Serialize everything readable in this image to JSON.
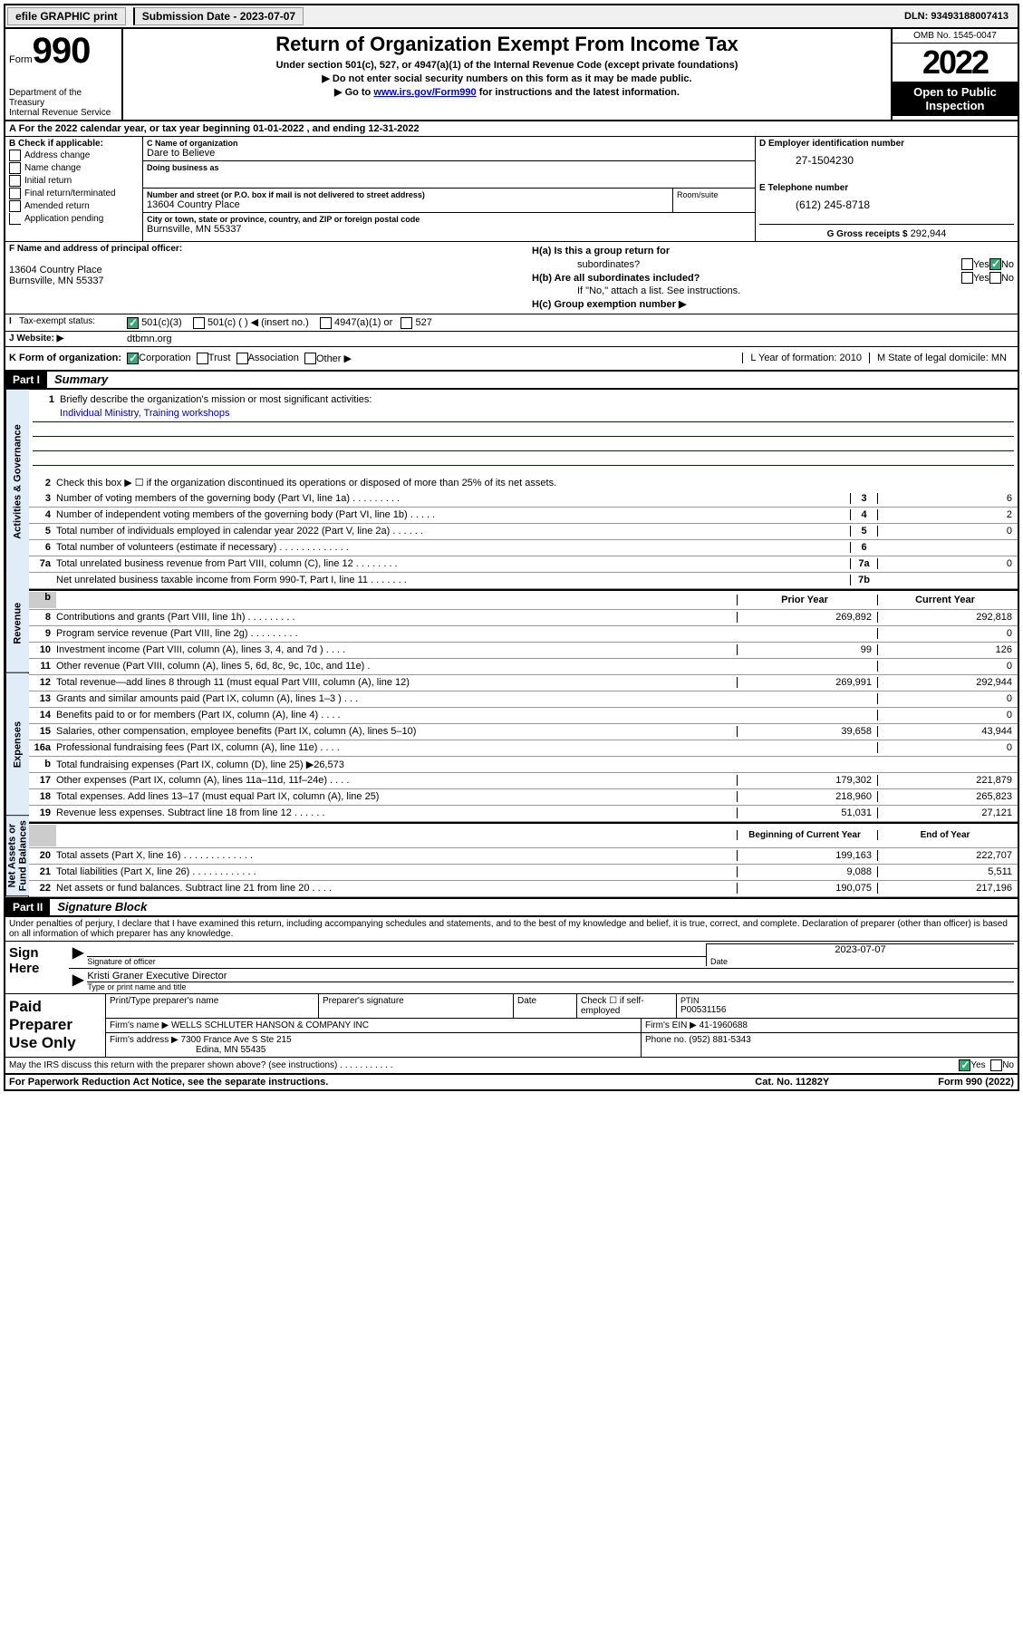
{
  "topbar": {
    "efile": "efile GRAPHIC print",
    "sub_label": "Submission Date - 2023-07-07",
    "dln": "DLN: 93493188007413"
  },
  "header": {
    "form_word": "Form",
    "form_num": "990",
    "dept": "Department of the Treasury",
    "irs": "Internal Revenue Service",
    "title": "Return of Organization Exempt From Income Tax",
    "sub1": "Under section 501(c), 527, or 4947(a)(1) of the Internal Revenue Code (except private foundations)",
    "sub2": "▶ Do not enter social security numbers on this form as it may be made public.",
    "sub3_pre": "▶ Go to ",
    "sub3_link": "www.irs.gov/Form990",
    "sub3_post": " for instructions and the latest information.",
    "omb": "OMB No. 1545-0047",
    "year": "2022",
    "open1": "Open to Public",
    "open2": "Inspection"
  },
  "a": {
    "line": "A For the 2022 calendar year, or tax year beginning 01-01-2022    , and ending 12-31-2022"
  },
  "b": {
    "label": "B Check if applicable:",
    "items": [
      "Address change",
      "Name change",
      "Initial return",
      "Final return/terminated",
      "Amended return",
      "Application pending"
    ]
  },
  "c": {
    "name_label": "C Name of organization",
    "name": "Dare to Believe",
    "dba_label": "Doing business as",
    "dba": "",
    "addr_label": "Number and street (or P.O. box if mail is not delivered to street address)",
    "addr": "13604 Country Place",
    "suite_label": "Room/suite",
    "city_label": "City or town, state or province, country, and ZIP or foreign postal code",
    "city": "Burnsville, MN  55337"
  },
  "d": {
    "label": "D Employer identification number",
    "val": "27-1504230"
  },
  "e": {
    "label": "E Telephone number",
    "val": "(612) 245-8718"
  },
  "g": {
    "label": "G Gross receipts $",
    "val": "292,944"
  },
  "f": {
    "label": "F Name and address of principal officer:",
    "addr1": "13604 Country Place",
    "addr2": "Burnsville, MN  55337"
  },
  "h": {
    "ha": "H(a)  Is this a group return for",
    "ha2": "subordinates?",
    "hb": "H(b)  Are all subordinates included?",
    "hb_note": "If \"No,\" attach a list. See instructions.",
    "hc": "H(c)  Group exemption number ▶"
  },
  "i": {
    "label": "Tax-exempt status:",
    "opt1": "501(c)(3)",
    "opt2": "501(c) (  ) ◀ (insert no.)",
    "opt3": "4947(a)(1) or",
    "opt4": "527"
  },
  "j": {
    "label": "J   Website: ▶",
    "val": "dtbmn.org"
  },
  "k": {
    "label": "K Form of organization:",
    "opts": [
      "Corporation",
      "Trust",
      "Association",
      "Other ▶"
    ],
    "l_label": "L Year of formation: 2010",
    "m_label": "M State of legal domicile: MN"
  },
  "parts": {
    "p1": "Part I",
    "p1_title": "Summary",
    "p2": "Part II",
    "p2_title": "Signature Block"
  },
  "summary": {
    "vtabs": {
      "gov": "Activities & Governance",
      "rev": "Revenue",
      "exp": "Expenses",
      "net": "Net Assets or Fund Balances"
    },
    "line1": "Briefly describe the organization's mission or most significant activities:",
    "mission": "Individual Ministry, Training workshops",
    "line2": "Check this box ▶ ☐  if the organization discontinued its operations or disposed of more than 25% of its net assets.",
    "rows_gov": [
      {
        "n": "3",
        "t": "Number of voting members of the governing body (Part VI, line 1a)   .    .    .    .    .    .    .    .    .",
        "box": "3",
        "v": "6"
      },
      {
        "n": "4",
        "t": "Number of independent voting members of the governing body (Part VI, line 1b)   .    .    .    .    .",
        "box": "4",
        "v": "2"
      },
      {
        "n": "5",
        "t": "Total number of individuals employed in calendar year 2022 (Part V, line 2a)   .    .    .    .    .    .",
        "box": "5",
        "v": "0"
      },
      {
        "n": "6",
        "t": "Total number of volunteers (estimate if necessary)   .    .    .    .    .    .    .    .    .    .    .    .    .",
        "box": "6",
        "v": ""
      },
      {
        "n": "7a",
        "t": "Total unrelated business revenue from Part VIII, column (C), line 12   .    .    .    .    .    .    .    .",
        "box": "7a",
        "v": "0"
      },
      {
        "n": "",
        "t": "Net unrelated business taxable income from Form 990-T, Part I, line 11   .    .    .    .    .    .    .",
        "box": "7b",
        "v": ""
      }
    ],
    "hdr_prior": "Prior Year",
    "hdr_cur": "Current Year",
    "rows_rev": [
      {
        "n": "8",
        "t": "Contributions and grants (Part VIII, line 1h)   .    .    .    .    .    .    .    .    .",
        "p": "269,892",
        "c": "292,818"
      },
      {
        "n": "9",
        "t": "Program service revenue (Part VIII, line 2g)   .    .    .    .    .    .    .    .    .",
        "p": "",
        "c": "0"
      },
      {
        "n": "10",
        "t": "Investment income (Part VIII, column (A), lines 3, 4, and 7d )   .    .    .    .",
        "p": "99",
        "c": "126"
      },
      {
        "n": "11",
        "t": "Other revenue (Part VIII, column (A), lines 5, 6d, 8c, 9c, 10c, and 11e)   .",
        "p": "",
        "c": "0"
      },
      {
        "n": "12",
        "t": "Total revenue—add lines 8 through 11 (must equal Part VIII, column (A), line 12)",
        "p": "269,991",
        "c": "292,944"
      }
    ],
    "rows_exp": [
      {
        "n": "13",
        "t": "Grants and similar amounts paid (Part IX, column (A), lines 1–3 )   .    .    .",
        "p": "",
        "c": "0"
      },
      {
        "n": "14",
        "t": "Benefits paid to or for members (Part IX, column (A), line 4)   .    .    .    .",
        "p": "",
        "c": "0"
      },
      {
        "n": "15",
        "t": "Salaries, other compensation, employee benefits (Part IX, column (A), lines 5–10)",
        "p": "39,658",
        "c": "43,944"
      },
      {
        "n": "16a",
        "t": "Professional fundraising fees (Part IX, column (A), line 11e)   .    .    .    .",
        "p": "",
        "c": "0"
      },
      {
        "n": "b",
        "t": "Total fundraising expenses (Part IX, column (D), line 25) ▶26,573",
        "p": "GRAY",
        "c": "GRAY"
      },
      {
        "n": "17",
        "t": "Other expenses (Part IX, column (A), lines 11a–11d, 11f–24e)   .    .    .    .",
        "p": "179,302",
        "c": "221,879"
      },
      {
        "n": "18",
        "t": "Total expenses. Add lines 13–17 (must equal Part IX, column (A), line 25)",
        "p": "218,960",
        "c": "265,823"
      },
      {
        "n": "19",
        "t": "Revenue less expenses. Subtract line 18 from line 12   .    .    .    .    .    .",
        "p": "51,031",
        "c": "27,121"
      }
    ],
    "hdr_begin": "Beginning of Current Year",
    "hdr_end": "End of Year",
    "rows_net": [
      {
        "n": "20",
        "t": "Total assets (Part X, line 16)   .    .    .    .    .    .    .    .    .    .    .    .    .",
        "p": "199,163",
        "c": "222,707"
      },
      {
        "n": "21",
        "t": "Total liabilities (Part X, line 26)   .    .    .    .    .    .    .    .    .    .    .    .",
        "p": "9,088",
        "c": "5,511"
      },
      {
        "n": "22",
        "t": "Net assets or fund balances. Subtract line 21 from line 20   .    .    .    .",
        "p": "190,075",
        "c": "217,196"
      }
    ]
  },
  "sig": {
    "declaration": "Under penalties of perjury, I declare that I have examined this return, including accompanying schedules and statements, and to the best of my knowledge and belief, it is true, correct, and complete. Declaration of preparer (other than officer) is based on all information of which preparer has any knowledge.",
    "sign_here": "Sign Here",
    "sig_officer": "Signature of officer",
    "date_label": "Date",
    "date": "2023-07-07",
    "name": "Kristi Graner  Executive Director",
    "name_label": "Type or print name and title"
  },
  "prep": {
    "title": "Paid Preparer Use Only",
    "h1": "Print/Type preparer's name",
    "h2": "Preparer's signature",
    "h3": "Date",
    "h4_pre": "Check ☐ if self-employed",
    "h5": "PTIN",
    "ptin": "P00531156",
    "firm_name_label": "Firm's name      ▶",
    "firm_name": "WELLS SCHLUTER HANSON & COMPANY INC",
    "firm_ein_label": "Firm's EIN ▶",
    "firm_ein": "41-1960688",
    "firm_addr_label": "Firm's address ▶",
    "firm_addr1": "7300 France Ave S Ste 215",
    "firm_addr2": "Edina, MN  55435",
    "phone_label": "Phone no.",
    "phone": "(952) 881-5343"
  },
  "footer": {
    "discuss": "May the IRS discuss this return with the preparer shown above? (see instructions)   .    .    .    .    .    .    .    .    .    .    .",
    "paperwork": "For Paperwork Reduction Act Notice, see the separate instructions.",
    "cat": "Cat. No. 11282Y",
    "form": "Form 990 (2022)"
  }
}
